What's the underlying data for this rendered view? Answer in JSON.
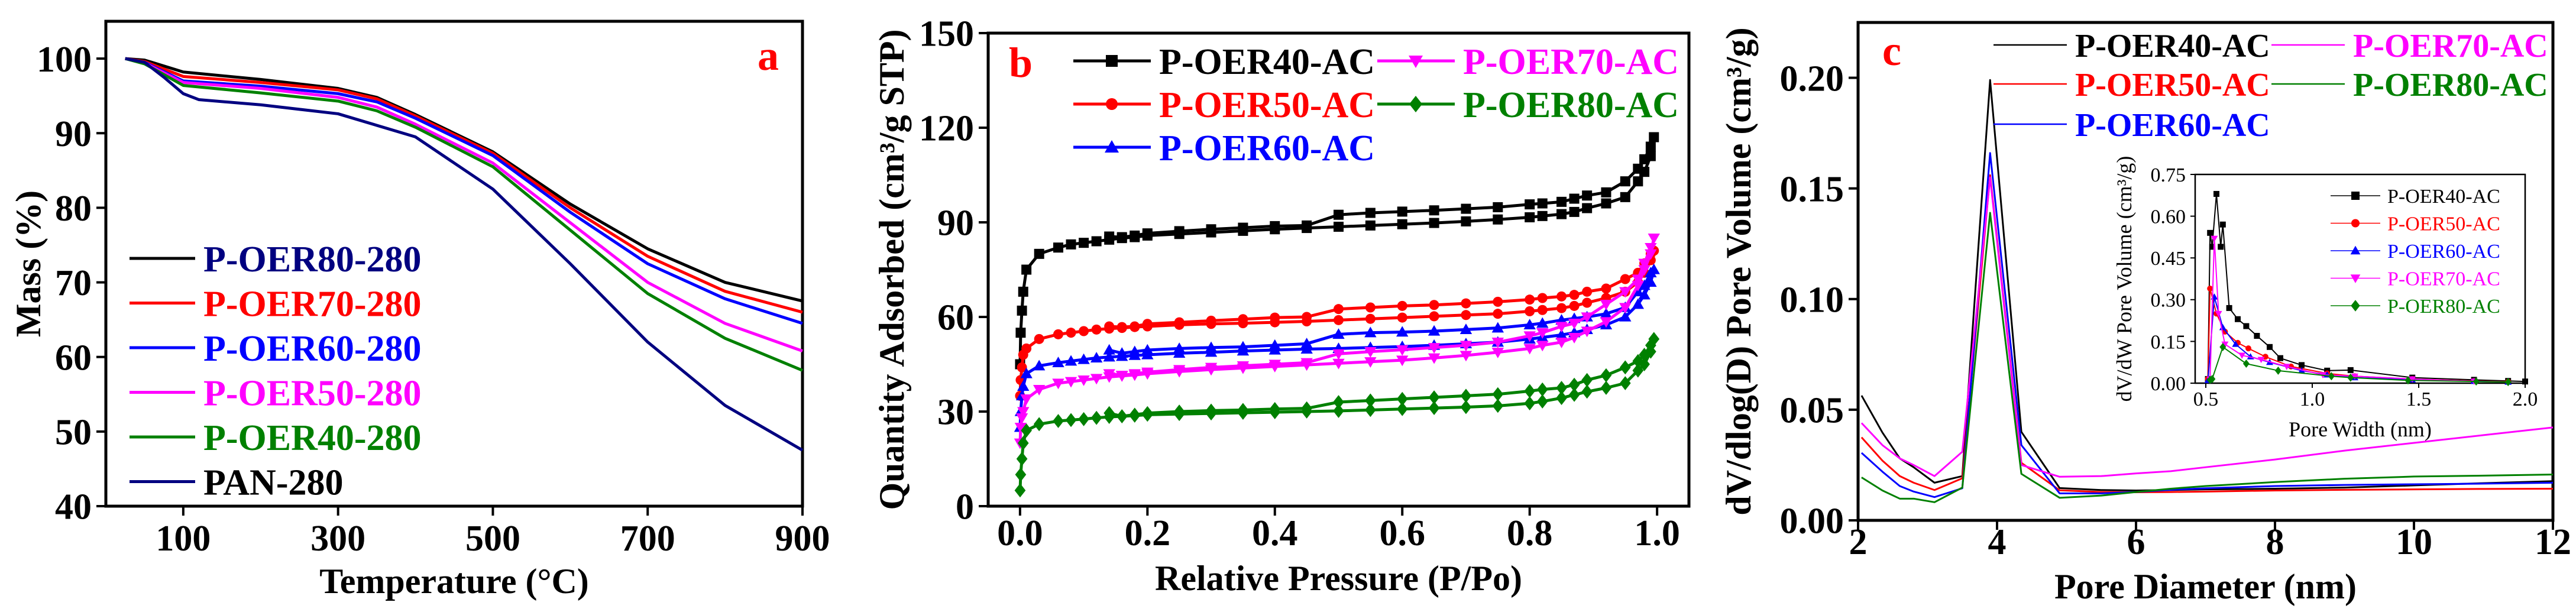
{
  "colors": {
    "black": "#000000",
    "red": "#ff0000",
    "blue": "#0000ff",
    "magenta": "#ff00ff",
    "green": "#008000",
    "navy": "#000080"
  },
  "chart_data": [
    {
      "panel_label": "a",
      "type": "line",
      "xlabel": "Temperature (°C)",
      "ylabel": "Mass (%)",
      "xlim": [
        0,
        900
      ],
      "ylim": [
        40,
        105
      ],
      "xticks": [
        100,
        300,
        500,
        700,
        900
      ],
      "yticks": [
        40,
        50,
        60,
        70,
        80,
        90,
        100
      ],
      "grid": false,
      "legend_position": "bottom-left",
      "series": [
        {
          "name": "P-OER80-280",
          "color": "#000000",
          "label_color": "#000080",
          "x": [
            25,
            50,
            100,
            200,
            300,
            350,
            400,
            500,
            600,
            700,
            800,
            900
          ],
          "y": [
            100,
            99.8,
            98.2,
            97.2,
            96,
            94.8,
            92.5,
            87.5,
            80.5,
            74.5,
            70,
            67.5
          ]
        },
        {
          "name": "P-OER70-280",
          "color": "#ff0000",
          "label_color": "#ff0000",
          "x": [
            25,
            50,
            100,
            200,
            300,
            350,
            400,
            500,
            600,
            700,
            800,
            900
          ],
          "y": [
            100,
            99.6,
            97.6,
            96.8,
            95.8,
            94.6,
            92.3,
            87.3,
            80,
            73.5,
            68.8,
            66
          ]
        },
        {
          "name": "P-OER60-280",
          "color": "#0000ff",
          "label_color": "#0000ff",
          "x": [
            25,
            50,
            100,
            200,
            300,
            350,
            400,
            500,
            600,
            700,
            800,
            900
          ],
          "y": [
            100,
            99.5,
            97,
            96.3,
            95.3,
            94.2,
            92,
            87,
            79.4,
            72.5,
            67.8,
            64.5
          ]
        },
        {
          "name": "P-OER50-280",
          "color": "#ff00ff",
          "label_color": "#ff00ff",
          "x": [
            25,
            50,
            100,
            200,
            300,
            350,
            400,
            500,
            600,
            700,
            800,
            900
          ],
          "y": [
            100,
            99.4,
            96.8,
            96,
            94.8,
            93.5,
            91.2,
            86,
            78,
            70,
            64.5,
            60.8
          ]
        },
        {
          "name": "P-OER40-280",
          "color": "#008000",
          "label_color": "#008000",
          "x": [
            25,
            50,
            100,
            200,
            300,
            350,
            400,
            500,
            600,
            700,
            800,
            900
          ],
          "y": [
            100,
            99.3,
            96.4,
            95.4,
            94.3,
            93,
            90.8,
            85.5,
            77,
            68.5,
            62.5,
            58.2
          ]
        },
        {
          "name": "PAN-280",
          "color": "#000080",
          "label_color": "#000000",
          "x": [
            25,
            50,
            75,
            100,
            120,
            200,
            300,
            400,
            500,
            600,
            700,
            800,
            900
          ],
          "y": [
            100,
            99.5,
            97.5,
            95.3,
            94.5,
            93.8,
            92.6,
            89.5,
            82.5,
            72.5,
            62,
            53.5,
            47.5
          ]
        }
      ]
    },
    {
      "panel_label": "b",
      "type": "line",
      "xlabel": "Relative Pressure (P/Po)",
      "ylabel": "Quantity Adsorbed (cm³/g STP)",
      "xlim": [
        -0.05,
        1.05
      ],
      "ylim": [
        0,
        150
      ],
      "xticks": [
        0.0,
        0.2,
        0.4,
        0.6,
        0.8,
        1.0
      ],
      "xtick_labels": [
        "0.0",
        "0.2",
        "0.4",
        "0.6",
        "0.8",
        "1.0"
      ],
      "yticks": [
        0,
        30,
        60,
        90,
        120,
        150
      ],
      "grid": false,
      "legend_position": "top",
      "adsorption_x": [
        0.0001,
        0.001,
        0.003,
        0.005,
        0.01,
        0.03,
        0.06,
        0.08,
        0.1,
        0.12,
        0.14,
        0.16,
        0.18,
        0.2,
        0.25,
        0.3,
        0.35,
        0.4,
        0.45,
        0.5,
        0.55,
        0.6,
        0.65,
        0.7,
        0.75,
        0.8,
        0.82,
        0.85,
        0.87,
        0.89,
        0.92,
        0.95,
        0.97,
        0.98,
        0.99,
        0.995
      ],
      "desorption_x": [
        0.99,
        0.98,
        0.97,
        0.95,
        0.92,
        0.89,
        0.87,
        0.85,
        0.82,
        0.8,
        0.75,
        0.7,
        0.65,
        0.6,
        0.55,
        0.5,
        0.45,
        0.4,
        0.35,
        0.3,
        0.25,
        0.2,
        0.18,
        0.16,
        0.14
      ],
      "series": [
        {
          "name": "P-OER40-AC",
          "color": "#000000",
          "marker": "square",
          "adsorption": [
            45,
            55,
            62,
            68,
            75,
            80,
            82,
            83,
            83.5,
            84,
            84.5,
            85,
            85.3,
            85.8,
            86.3,
            86.8,
            87.3,
            87.8,
            88.2,
            88.6,
            89,
            89.4,
            89.8,
            90.3,
            90.9,
            91.6,
            92,
            92.6,
            93.3,
            94.5,
            96,
            98,
            103,
            106,
            111,
            117
          ],
          "desorption": [
            114,
            110,
            107,
            103,
            99.5,
            98.5,
            97.5,
            96.5,
            96,
            95.7,
            94.8,
            94.3,
            93.8,
            93.4,
            93,
            92.4,
            89,
            88.8,
            88.3,
            87.8,
            87.2,
            86.5,
            85.8,
            85.3,
            85.5
          ]
        },
        {
          "name": "P-OER50-AC",
          "color": "#ff0000",
          "marker": "circle",
          "adsorption": [
            35,
            40,
            44,
            48,
            50,
            53,
            54.5,
            55,
            55.5,
            56,
            56.3,
            56.5,
            56.8,
            57,
            57.5,
            57.8,
            58,
            58.3,
            58.6,
            59,
            59.4,
            59.8,
            60.2,
            60.6,
            61,
            61.8,
            62.2,
            62.8,
            63.5,
            64.5,
            66,
            68,
            71,
            74,
            78,
            81
          ],
          "desorption": [
            80,
            77,
            74,
            72,
            69,
            68,
            67,
            66.5,
            66,
            65.5,
            64.8,
            64.3,
            63.8,
            63.5,
            63,
            62.5,
            60,
            59.8,
            59.3,
            58.8,
            58.3,
            57.8,
            57,
            56.8,
            57
          ]
        },
        {
          "name": "P-OER60-AC",
          "color": "#0000ff",
          "marker": "triangle-up",
          "adsorption": [
            25,
            30,
            35,
            38,
            42,
            44.5,
            45.5,
            46,
            46.5,
            47,
            47.3,
            47.5,
            47.8,
            48,
            48.5,
            48.8,
            49.2,
            49.5,
            49.8,
            50,
            50.3,
            50.6,
            51,
            51.5,
            52,
            53,
            53.5,
            54.3,
            55,
            56,
            57.5,
            60,
            64,
            67,
            71,
            75
          ],
          "desorption": [
            74,
            70,
            68,
            63,
            61,
            60,
            59.5,
            59,
            58,
            57.5,
            56.5,
            56,
            55.5,
            55.2,
            55,
            54.5,
            51.5,
            51,
            50.5,
            50.3,
            50,
            49.5,
            49,
            48.5,
            49.5
          ]
        },
        {
          "name": "P-OER70-AC",
          "color": "#ff00ff",
          "marker": "triangle-down",
          "adsorption": [
            20,
            25,
            28,
            30,
            34,
            37,
            39,
            39.5,
            40,
            40.5,
            41,
            41.3,
            41.6,
            42,
            42.7,
            43.3,
            43.8,
            44.3,
            44.8,
            45.3,
            45.8,
            46.3,
            47,
            47.8,
            48.8,
            50,
            51,
            52,
            53.5,
            55.5,
            58.5,
            63,
            70,
            75,
            80,
            85
          ],
          "desorption": [
            82,
            77,
            72,
            68,
            64,
            60,
            58,
            57,
            55,
            54,
            52,
            51,
            50.3,
            49.6,
            49,
            48.3,
            45.5,
            45,
            44.5,
            44,
            43.3,
            42.5,
            42,
            41.5,
            42
          ]
        },
        {
          "name": "P-OER80-AC",
          "color": "#008000",
          "marker": "diamond",
          "adsorption": [
            5,
            10,
            15,
            20,
            24,
            26,
            27,
            27.3,
            27.6,
            28,
            28.3,
            28.5,
            28.7,
            29,
            29.2,
            29.4,
            29.6,
            29.8,
            30,
            30.2,
            30.5,
            30.8,
            31.1,
            31.4,
            31.8,
            32.6,
            33.2,
            34.3,
            35.3,
            36.3,
            37.5,
            39,
            43,
            45,
            49,
            53
          ],
          "desorption": [
            51,
            48,
            46,
            44,
            41.5,
            40,
            38.5,
            37.5,
            37,
            36.5,
            35.5,
            35,
            34.5,
            34,
            33.5,
            33,
            31,
            30.8,
            30.5,
            30.3,
            30,
            29.5,
            29,
            28.5,
            29.5
          ]
        }
      ]
    },
    {
      "panel_label": "c",
      "type": "line",
      "xlabel": "Pore Diameter (nm)",
      "ylabel": "dV/dlog(D) Pore Volume (cm³/g)",
      "xlim": [
        2,
        12
      ],
      "ylim": [
        0,
        0.225
      ],
      "xticks": [
        2,
        4,
        6,
        8,
        10,
        12
      ],
      "yticks": [
        0,
        0.05,
        0.1,
        0.15,
        0.2
      ],
      "ytick_labels": [
        "0.00",
        "0.05",
        "0.10",
        "0.15",
        "0.20"
      ],
      "grid": false,
      "legend_position": "top",
      "x": [
        2.05,
        2.35,
        2.6,
        2.8,
        3.1,
        3.5,
        3.9,
        4.35,
        4.9,
        5.5,
        6,
        6.5,
        7,
        8,
        9,
        10,
        11,
        12
      ],
      "series": [
        {
          "name": "P-OER40-AC",
          "color": "#000000",
          "y": [
            0.0564,
            0.0397,
            0.028,
            0.024,
            0.017,
            0.02,
            0.199,
            0.04,
            0.0146,
            0.0137,
            0.0135,
            0.0137,
            0.014,
            0.0143,
            0.0148,
            0.0158,
            0.0168,
            0.0177
          ]
        },
        {
          "name": "P-OER50-AC",
          "color": "#ff0000",
          "y": [
            0.0375,
            0.027,
            0.02,
            0.017,
            0.0137,
            0.019,
            0.156,
            0.026,
            0.0136,
            0.0128,
            0.0127,
            0.0128,
            0.013,
            0.0135,
            0.0138,
            0.014,
            0.0142,
            0.0143
          ]
        },
        {
          "name": "P-OER60-AC",
          "color": "#0000ff",
          "y": [
            0.0305,
            0.022,
            0.0155,
            0.013,
            0.0105,
            0.0145,
            0.166,
            0.034,
            0.0122,
            0.0122,
            0.0128,
            0.0138,
            0.0145,
            0.0155,
            0.016,
            0.0163,
            0.0166,
            0.017
          ]
        },
        {
          "name": "P-OER70-AC",
          "color": "#ff00ff",
          "y": [
            0.044,
            0.034,
            0.028,
            0.025,
            0.02,
            0.031,
            0.155,
            0.025,
            0.0197,
            0.02,
            0.0212,
            0.0222,
            0.024,
            0.0275,
            0.0315,
            0.035,
            0.0385,
            0.042
          ]
        },
        {
          "name": "P-OER80-AC",
          "color": "#008000",
          "y": [
            0.0194,
            0.0135,
            0.0098,
            0.0098,
            0.0082,
            0.0148,
            0.139,
            0.021,
            0.0102,
            0.0112,
            0.0128,
            0.0143,
            0.0155,
            0.0173,
            0.0188,
            0.0198,
            0.0202,
            0.0207
          ]
        }
      ],
      "inset": {
        "type": "line",
        "xlabel": "Pore Width (nm)",
        "ylabel": "dV/dW Pore Volume (cm³/g)",
        "xlim": [
          0.45,
          2.0
        ],
        "ylim": [
          0,
          0.75
        ],
        "xticks": [
          0.5,
          1.0,
          1.5,
          2.0
        ],
        "xtick_labels": [
          "0.5",
          "1.0",
          "1.5",
          "2.0"
        ],
        "yticks": [
          0,
          0.15,
          0.3,
          0.45,
          0.6,
          0.75
        ],
        "ytick_labels": [
          "0.00",
          "0.15",
          "0.30",
          "0.45",
          "0.60",
          "0.75"
        ],
        "legend_position": "top-right",
        "series": [
          {
            "name": "P-OER40-AC",
            "color": "#000000",
            "marker": "square",
            "x": [
              0.51,
              0.52,
              0.53,
              0.55,
              0.57,
              0.58,
              0.61,
              0.65,
              0.69,
              0.74,
              0.8,
              0.85,
              0.95,
              1.07,
              1.18,
              1.47,
              1.76,
              1.92,
              2.0
            ],
            "y": [
              0.015,
              0.54,
              0.49,
              0.68,
              0.49,
              0.57,
              0.27,
              0.23,
              0.205,
              0.17,
              0.13,
              0.09,
              0.065,
              0.045,
              0.047,
              0.02,
              0.012,
              0.008,
              0.006
            ]
          },
          {
            "name": "P-OER50-AC",
            "color": "#ff0000",
            "marker": "circle",
            "x": [
              0.51,
              0.52,
              0.55,
              0.59,
              0.65,
              0.7,
              0.78,
              0.9,
              1.07,
              1.2,
              1.47,
              1.76,
              1.92
            ],
            "y": [
              0.015,
              0.34,
              0.25,
              0.185,
              0.145,
              0.125,
              0.095,
              0.06,
              0.035,
              0.025,
              0.015,
              0.008,
              0.005
            ]
          },
          {
            "name": "P-OER60-AC",
            "color": "#0000ff",
            "marker": "triangle-up",
            "x": [
              0.51,
              0.54,
              0.58,
              0.64,
              0.71,
              0.8,
              0.95,
              1.07,
              1.2,
              1.47,
              1.76,
              1.92
            ],
            "y": [
              0.01,
              0.31,
              0.2,
              0.14,
              0.095,
              0.075,
              0.045,
              0.03,
              0.02,
              0.012,
              0.007,
              0.004
            ]
          },
          {
            "name": "P-OER70-AC",
            "color": "#ff00ff",
            "marker": "triangle-down",
            "x": [
              0.52,
              0.54,
              0.56,
              0.59,
              0.67,
              0.76,
              0.88,
              1.05,
              1.2,
              1.47,
              1.76
            ],
            "y": [
              0.015,
              0.52,
              0.25,
              0.14,
              0.1,
              0.085,
              0.06,
              0.03,
              0.025,
              0.015,
              0.007
            ]
          },
          {
            "name": "P-OER80-AC",
            "color": "#008000",
            "marker": "diamond",
            "x": [
              0.52,
              0.53,
              0.58,
              0.69,
              0.84,
              1.09,
              1.18,
              1.45,
              1.77,
              1.92
            ],
            "y": [
              0.012,
              0.015,
              0.13,
              0.07,
              0.045,
              0.025,
              0.02,
              0.01,
              0.006,
              0.004
            ]
          }
        ]
      }
    }
  ]
}
